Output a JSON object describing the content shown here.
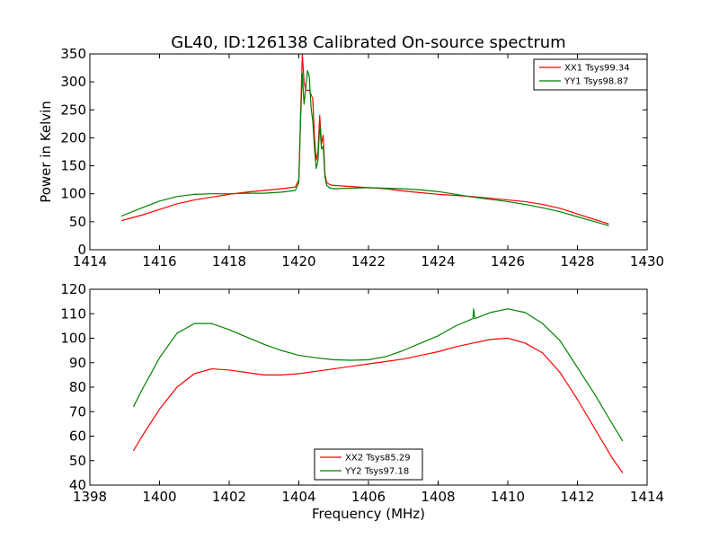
{
  "figure": {
    "title": "GL40, ID:126138 Calibrated On-source spectrum"
  },
  "chart_data": [
    {
      "type": "line",
      "title": "GL40, ID:126138 Calibrated On-source spectrum",
      "xlabel": "",
      "ylabel": "Power in Kelvin",
      "xlim": [
        1414,
        1430
      ],
      "ylim": [
        0,
        350
      ],
      "xticks": [
        1414,
        1416,
        1418,
        1420,
        1422,
        1424,
        1426,
        1428,
        1430
      ],
      "yticks": [
        0,
        50,
        100,
        150,
        200,
        250,
        300,
        350
      ],
      "grid": false,
      "legend": "top-right",
      "series": [
        {
          "name": "XX1 Tsys99.34",
          "color": "#ff0000",
          "x": [
            1414.9,
            1415.5,
            1416.0,
            1416.5,
            1417.0,
            1417.5,
            1418.0,
            1418.5,
            1419.0,
            1419.5,
            1419.9,
            1420.0,
            1420.05,
            1420.1,
            1420.15,
            1420.2,
            1420.3,
            1420.4,
            1420.45,
            1420.5,
            1420.55,
            1420.6,
            1420.65,
            1420.7,
            1420.75,
            1420.8,
            1420.9,
            1421.0,
            1421.5,
            1422.0,
            1422.5,
            1423.0,
            1423.5,
            1424.0,
            1424.5,
            1425.0,
            1425.5,
            1426.0,
            1426.5,
            1427.0,
            1427.5,
            1428.0,
            1428.5,
            1428.9
          ],
          "y": [
            52,
            62,
            72,
            82,
            89,
            94,
            99,
            103,
            106,
            109,
            112,
            125,
            240,
            350,
            300,
            285,
            285,
            270,
            200,
            160,
            175,
            240,
            190,
            205,
            135,
            120,
            116,
            115,
            113,
            111,
            109,
            105,
            102,
            99,
            97,
            95,
            92,
            89,
            86,
            81,
            74,
            64,
            54,
            46
          ]
        },
        {
          "name": "YY1 Tsys98.87",
          "color": "#008000",
          "x": [
            1414.9,
            1415.5,
            1416.0,
            1416.5,
            1417.0,
            1417.5,
            1418.0,
            1418.5,
            1419.0,
            1419.5,
            1419.9,
            1420.0,
            1420.05,
            1420.1,
            1420.15,
            1420.2,
            1420.25,
            1420.3,
            1420.35,
            1420.4,
            1420.45,
            1420.5,
            1420.55,
            1420.6,
            1420.65,
            1420.7,
            1420.75,
            1420.8,
            1420.9,
            1421.0,
            1421.5,
            1422.0,
            1422.5,
            1423.0,
            1423.5,
            1424.0,
            1424.5,
            1425.0,
            1425.5,
            1426.0,
            1426.5,
            1427.0,
            1427.5,
            1428.0,
            1428.5,
            1428.9
          ],
          "y": [
            60,
            75,
            87,
            95,
            99,
            100,
            100,
            101,
            101,
            103,
            106,
            120,
            230,
            315,
            260,
            290,
            320,
            310,
            255,
            230,
            180,
            145,
            160,
            225,
            180,
            185,
            130,
            115,
            110,
            109,
            110,
            111,
            110,
            109,
            107,
            104,
            99,
            94,
            90,
            86,
            81,
            75,
            68,
            59,
            50,
            43
          ]
        }
      ]
    },
    {
      "type": "line",
      "title": "",
      "xlabel": "Frequency (MHz)",
      "ylabel": "",
      "xlim": [
        1398,
        1414
      ],
      "ylim": [
        40,
        120
      ],
      "xticks": [
        1398,
        1400,
        1402,
        1404,
        1406,
        1408,
        1410,
        1412,
        1414
      ],
      "yticks": [
        40,
        50,
        60,
        70,
        80,
        90,
        100,
        110,
        120
      ],
      "grid": false,
      "legend": "bottom-center",
      "series": [
        {
          "name": "XX2 Tsys85.29",
          "color": "#ff0000",
          "x": [
            1399.25,
            1399.5,
            1400.0,
            1400.5,
            1401.0,
            1401.5,
            1402.0,
            1402.5,
            1403.0,
            1403.5,
            1404.0,
            1404.5,
            1405.0,
            1405.5,
            1406.0,
            1406.5,
            1407.0,
            1407.5,
            1408.0,
            1408.5,
            1409.0,
            1409.5,
            1410.0,
            1410.5,
            1411.0,
            1411.5,
            1412.0,
            1412.5,
            1413.0,
            1413.3
          ],
          "y": [
            54,
            60,
            71,
            80,
            85.5,
            87.5,
            87,
            86,
            85,
            85,
            85.5,
            86.5,
            87.5,
            88.5,
            89.5,
            90.5,
            91.5,
            93,
            94.5,
            96.5,
            98,
            99.5,
            100,
            98,
            94,
            86,
            75,
            63,
            51,
            45
          ]
        },
        {
          "name": "YY2 Tsys97.18",
          "color": "#008000",
          "x": [
            1399.25,
            1399.5,
            1400.0,
            1400.5,
            1401.0,
            1401.5,
            1402.0,
            1402.5,
            1403.0,
            1403.5,
            1404.0,
            1404.5,
            1405.0,
            1405.5,
            1406.0,
            1406.5,
            1407.0,
            1407.5,
            1408.0,
            1408.5,
            1409.0,
            1409.02,
            1409.05,
            1409.5,
            1410.0,
            1410.5,
            1411.0,
            1411.5,
            1412.0,
            1412.5,
            1413.0,
            1413.3
          ],
          "y": [
            72,
            79,
            92,
            102,
            106,
            106,
            103.5,
            100.5,
            97.5,
            95,
            93,
            92,
            91.2,
            91,
            91.2,
            92.5,
            95,
            98,
            101,
            105,
            108,
            112,
            108,
            110.5,
            112,
            110.5,
            106,
            99,
            88,
            77,
            65,
            58
          ]
        }
      ]
    }
  ]
}
